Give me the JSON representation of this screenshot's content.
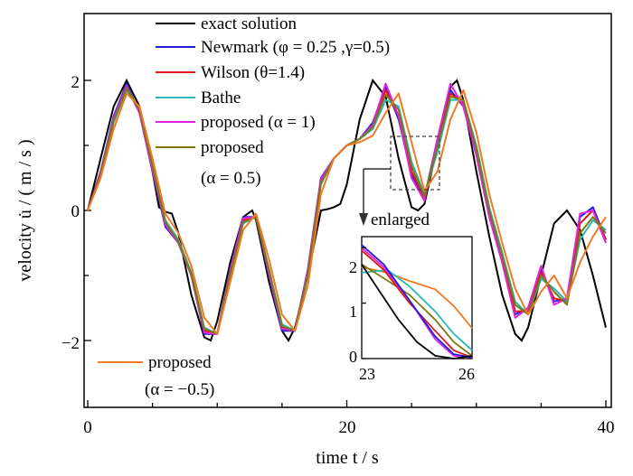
{
  "chart_data": {
    "type": "line",
    "xlabel": "time t / s",
    "ylabel": "velocity u̇ / ( m / s )",
    "xlim": [
      0,
      40
    ],
    "ylim": [
      -3,
      3
    ],
    "xticks": [
      "0",
      "20",
      "40"
    ],
    "yticks": [
      "−2",
      "0",
      "2"
    ],
    "grid": false,
    "x": [
      0,
      1,
      2,
      3,
      4,
      5,
      6,
      7,
      8,
      9,
      10,
      11,
      12,
      13,
      14,
      15,
      16,
      17,
      18,
      19,
      20,
      21,
      22,
      23,
      24,
      25,
      26,
      27,
      28,
      29,
      30,
      31,
      32,
      33,
      34,
      35,
      36,
      37,
      38,
      39,
      40
    ],
    "series": [
      {
        "name": "exact solution",
        "color": "#000000",
        "x": "dense",
        "values_note": ""
      },
      {
        "name": "Newmark (φ = 0.25 ,γ=0.5)",
        "color": "#1f1fd6",
        "values": [
          0,
          0.6,
          1.45,
          1.95,
          1.5,
          0.6,
          -0.25,
          -0.5,
          -1.0,
          -1.9,
          -1.9,
          -0.9,
          -0.1,
          -0.1,
          -1.0,
          -1.85,
          -1.85,
          -0.9,
          0.5,
          0.8,
          1.0,
          1.1,
          1.35,
          1.9,
          1.4,
          0.55,
          0.2,
          1.1,
          1.85,
          1.6,
          0.85,
          -0.1,
          -0.8,
          -1.6,
          -1.5,
          -0.9,
          -1.4,
          -1.35,
          -0.1,
          0.05,
          -0.45
        ]
      },
      {
        "name": "Wilson (θ=1.4)",
        "color": "#e01a1a",
        "values": [
          0,
          0.58,
          1.4,
          1.9,
          1.5,
          0.65,
          -0.2,
          -0.5,
          -1.0,
          -1.85,
          -1.9,
          -0.95,
          -0.15,
          -0.1,
          -0.95,
          -1.8,
          -1.85,
          -0.95,
          0.45,
          0.8,
          1.0,
          1.1,
          1.3,
          1.85,
          1.45,
          0.6,
          0.2,
          1.05,
          1.8,
          1.65,
          0.9,
          -0.05,
          -0.75,
          -1.55,
          -1.55,
          -0.95,
          -1.35,
          -1.4,
          -0.2,
          0.0,
          -0.45
        ]
      },
      {
        "name": "Bathe",
        "color": "#2ab7b7",
        "values": [
          0,
          0.55,
          1.35,
          1.85,
          1.55,
          0.7,
          -0.15,
          -0.45,
          -0.95,
          -1.8,
          -1.9,
          -1.0,
          -0.2,
          -0.1,
          -0.9,
          -1.75,
          -1.85,
          -1.0,
          0.4,
          0.8,
          1.0,
          1.1,
          1.25,
          1.7,
          1.6,
          0.75,
          0.25,
          0.9,
          1.7,
          1.7,
          1.0,
          0.05,
          -0.65,
          -1.4,
          -1.6,
          -1.05,
          -1.2,
          -1.4,
          -0.45,
          -0.15,
          -0.3
        ]
      },
      {
        "name": "proposed (α = 1)",
        "color": "#e022e0",
        "values": [
          0,
          0.58,
          1.42,
          1.92,
          1.5,
          0.62,
          -0.22,
          -0.5,
          -1.0,
          -1.88,
          -1.9,
          -0.92,
          -0.12,
          -0.1,
          -0.98,
          -1.82,
          -1.85,
          -0.92,
          0.48,
          0.8,
          1.0,
          1.1,
          1.32,
          1.95,
          1.45,
          0.5,
          0.15,
          1.1,
          1.95,
          1.6,
          0.85,
          -0.1,
          -0.8,
          -1.65,
          -1.5,
          -0.85,
          -1.45,
          -1.35,
          -0.05,
          0.0,
          -0.5
        ]
      },
      {
        "name": "proposed\n(α = 0.5)",
        "color": "#7a7a10",
        "values": [
          0,
          0.55,
          1.38,
          1.88,
          1.55,
          0.68,
          -0.18,
          -0.48,
          -0.98,
          -1.82,
          -1.9,
          -0.98,
          -0.18,
          -0.1,
          -0.92,
          -1.78,
          -1.85,
          -0.98,
          0.42,
          0.8,
          1.0,
          1.1,
          1.28,
          1.78,
          1.55,
          0.68,
          0.22,
          0.98,
          1.75,
          1.7,
          0.95,
          0.0,
          -0.7,
          -1.45,
          -1.6,
          -1.0,
          -1.25,
          -1.45,
          -0.35,
          -0.1,
          -0.35
        ]
      },
      {
        "name": "proposed\n(α = −0.5)",
        "color": "#f07a22",
        "values": [
          0,
          0.5,
          1.25,
          1.8,
          1.6,
          0.8,
          -0.05,
          -0.35,
          -0.85,
          -1.65,
          -1.9,
          -1.1,
          -0.3,
          -0.05,
          -0.75,
          -1.6,
          -1.85,
          -1.15,
          0.25,
          0.8,
          1.0,
          1.05,
          1.15,
          1.5,
          1.8,
          1.05,
          0.3,
          0.6,
          1.4,
          1.85,
          1.2,
          0.25,
          -0.5,
          -1.2,
          -1.6,
          -1.25,
          -1.0,
          -1.35,
          -0.8,
          -0.4,
          -0.1
        ]
      }
    ],
    "legend": {
      "placement": "top-center",
      "entries": [
        "exact solution",
        "Newmark (φ = 0.25 ,γ=0.5)",
        "Wilson (θ=1.4)",
        "Bathe",
        "proposed (α = 1)",
        "proposed",
        "(α = 0.5)"
      ],
      "extra_entry": [
        "proposed",
        "(α = −0.5)"
      ]
    },
    "annotation": "enlarged",
    "inset": {
      "xlim": [
        23,
        26
      ],
      "ylim": [
        0,
        2.2
      ],
      "xticks": [
        "23",
        "26"
      ],
      "yticks": [
        "0",
        "1",
        "2"
      ]
    }
  }
}
